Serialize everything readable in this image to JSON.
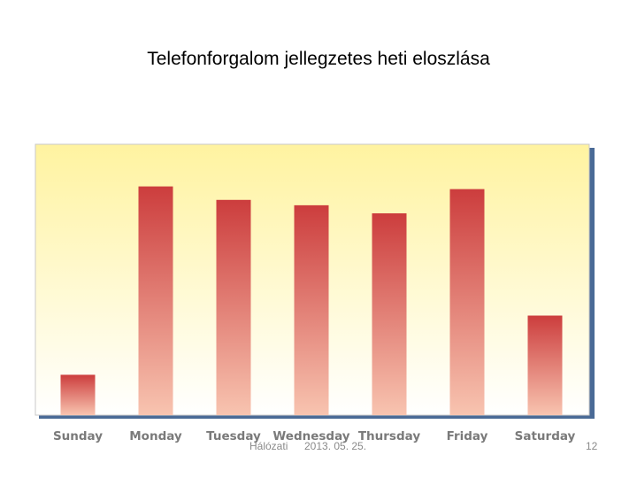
{
  "slide": {
    "title": "Telefonforgalom jellegzetes heti eloszlása",
    "footer_left": "Hálózati",
    "footer_date": "2013. 05. 25.",
    "page_number": "12"
  },
  "chart_data": {
    "type": "bar",
    "title": "Telefonforgalom jellegzetes heti eloszlása",
    "categories": [
      "Sunday",
      "Monday",
      "Tuesday",
      "Wednesday",
      "Thursday",
      "Friday",
      "Saturday"
    ],
    "values": [
      15,
      85,
      80,
      78,
      75,
      84,
      37
    ],
    "ylim": [
      0,
      100
    ],
    "grid": false,
    "legend": "none",
    "colors": {
      "bar_top": "#cc3d3d",
      "bar_bottom": "#f8c4b0",
      "plot_bg_top": "#fff3a0",
      "plot_bg_bottom": "#ffffff",
      "frame_shadow": "#4a6a96"
    }
  }
}
